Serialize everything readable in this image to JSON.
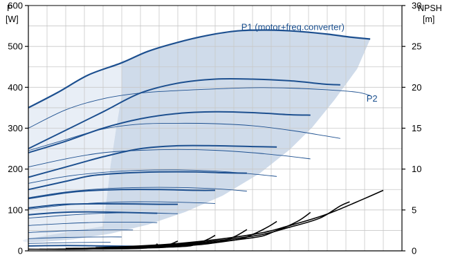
{
  "chart_data": {
    "type": "line",
    "left_axis": {
      "title_line1": "P",
      "title_line2": "[W]",
      "ylim": [
        0,
        600
      ],
      "ticks": [
        0,
        100,
        200,
        300,
        400,
        500,
        600
      ]
    },
    "right_axis": {
      "title_line1": "NPSH",
      "title_line2": "[m]",
      "ylim": [
        0,
        30
      ],
      "ticks": [
        0,
        5,
        10,
        15,
        20,
        25,
        30
      ]
    },
    "grid": true,
    "labels": [
      {
        "text": "P1 (motor+freq.converter)",
        "x": 0.57,
        "y": 540
      },
      {
        "text": "P2",
        "x": 0.905,
        "y": 365
      }
    ],
    "xlim": [
      0,
      1
    ],
    "colors": {
      "p1": "#1c4f8f",
      "p2": "#1c4f8f",
      "band": "#cfdbea",
      "band_light": "#e8eef6",
      "npsh": "#000000",
      "grid": "#c8c8c8"
    },
    "band_upper": [
      [
        0.25,
        460
      ],
      [
        0.32,
        488
      ],
      [
        0.4,
        510
      ],
      [
        0.48,
        527
      ],
      [
        0.56,
        538
      ],
      [
        0.64,
        540
      ],
      [
        0.72,
        537
      ],
      [
        0.8,
        530
      ],
      [
        0.86,
        523
      ],
      [
        0.915,
        518
      ]
    ],
    "band_lower": [
      [
        0.915,
        518
      ],
      [
        0.88,
        445
      ],
      [
        0.82,
        370
      ],
      [
        0.76,
        302
      ],
      [
        0.7,
        248
      ],
      [
        0.62,
        190
      ],
      [
        0.52,
        135
      ],
      [
        0.42,
        95
      ],
      [
        0.32,
        64
      ],
      [
        0.22,
        42
      ],
      [
        0.12,
        28
      ],
      [
        0.04,
        22
      ],
      [
        0,
        20
      ]
    ],
    "band_left": [
      [
        0,
        20
      ],
      [
        0,
        30
      ],
      [
        0.2,
        60
      ],
      [
        0.21,
        130
      ],
      [
        0.22,
        210
      ],
      [
        0.235,
        300
      ],
      [
        0.25,
        380
      ],
      [
        0.25,
        460
      ]
    ],
    "p1_series": [
      {
        "name": "",
        "points": [
          [
            0,
            350
          ],
          [
            0.08,
            388
          ],
          [
            0.16,
            430
          ],
          [
            0.25,
            460
          ],
          [
            0.32,
            488
          ],
          [
            0.4,
            510
          ],
          [
            0.48,
            527
          ],
          [
            0.56,
            538
          ],
          [
            0.64,
            540
          ],
          [
            0.72,
            537
          ],
          [
            0.8,
            530
          ],
          [
            0.86,
            523
          ],
          [
            0.915,
            518
          ]
        ]
      },
      {
        "name": "",
        "points": [
          [
            0,
            250
          ],
          [
            0.1,
            295
          ],
          [
            0.2,
            340
          ],
          [
            0.3,
            386
          ],
          [
            0.4,
            410
          ],
          [
            0.5,
            420
          ],
          [
            0.6,
            420
          ],
          [
            0.7,
            416
          ],
          [
            0.79,
            408
          ],
          [
            0.835,
            406
          ]
        ]
      },
      {
        "name": "",
        "points": [
          [
            0,
            240
          ],
          [
            0.1,
            268
          ],
          [
            0.2,
            300
          ],
          [
            0.3,
            323
          ],
          [
            0.4,
            336
          ],
          [
            0.5,
            340
          ],
          [
            0.6,
            338
          ],
          [
            0.7,
            333
          ],
          [
            0.755,
            332
          ]
        ]
      },
      {
        "name": "",
        "points": [
          [
            0,
            180
          ],
          [
            0.1,
            205
          ],
          [
            0.2,
            230
          ],
          [
            0.3,
            250
          ],
          [
            0.4,
            257
          ],
          [
            0.5,
            257
          ],
          [
            0.6,
            255
          ],
          [
            0.665,
            254
          ]
        ]
      },
      {
        "name": "",
        "points": [
          [
            0,
            150
          ],
          [
            0.1,
            170
          ],
          [
            0.17,
            184
          ],
          [
            0.25,
            190
          ],
          [
            0.35,
            193
          ],
          [
            0.45,
            193
          ],
          [
            0.52,
            191
          ],
          [
            0.585,
            190
          ]
        ]
      },
      {
        "name": "",
        "points": [
          [
            0,
            128
          ],
          [
            0.1,
            142
          ],
          [
            0.16,
            147
          ],
          [
            0.25,
            150
          ],
          [
            0.35,
            150
          ],
          [
            0.45,
            148
          ],
          [
            0.5,
            148
          ]
        ]
      },
      {
        "name": "",
        "points": [
          [
            0,
            105
          ],
          [
            0.08,
            113
          ],
          [
            0.15,
            115
          ],
          [
            0.25,
            115
          ],
          [
            0.35,
            114
          ],
          [
            0.4,
            114
          ]
        ]
      },
      {
        "name": "",
        "points": [
          [
            0,
            88
          ],
          [
            0.05,
            92
          ],
          [
            0.12,
            95
          ],
          [
            0.2,
            95
          ],
          [
            0.3,
            93
          ],
          [
            0.345,
            92
          ]
        ]
      },
      {
        "name": "",
        "points": [
          [
            0,
            12
          ],
          [
            0.1,
            13
          ],
          [
            0.2,
            12
          ],
          [
            0.3,
            11
          ],
          [
            0.39,
            10
          ]
        ]
      }
    ],
    "p2_series": [
      {
        "name": "",
        "points": [
          [
            0,
            300
          ],
          [
            0.1,
            345
          ],
          [
            0.2,
            372
          ],
          [
            0.3,
            386
          ],
          [
            0.4,
            392
          ],
          [
            0.5,
            396
          ],
          [
            0.6,
            399
          ],
          [
            0.7,
            398
          ],
          [
            0.8,
            394
          ],
          [
            0.88,
            388
          ],
          [
            0.915,
            380
          ]
        ]
      },
      {
        "name": "",
        "points": [
          [
            0,
            245
          ],
          [
            0.1,
            272
          ],
          [
            0.2,
            298
          ],
          [
            0.3,
            310
          ],
          [
            0.4,
            312
          ],
          [
            0.5,
            311
          ],
          [
            0.6,
            306
          ],
          [
            0.7,
            295
          ],
          [
            0.79,
            282
          ],
          [
            0.835,
            275
          ]
        ]
      },
      {
        "name": "",
        "points": [
          [
            0,
            205
          ],
          [
            0.1,
            225
          ],
          [
            0.2,
            240
          ],
          [
            0.3,
            246
          ],
          [
            0.4,
            248
          ],
          [
            0.5,
            246
          ],
          [
            0.6,
            240
          ],
          [
            0.68,
            233
          ],
          [
            0.755,
            225
          ]
        ]
      },
      {
        "name": "",
        "points": [
          [
            0,
            165
          ],
          [
            0.1,
            182
          ],
          [
            0.2,
            192
          ],
          [
            0.3,
            197
          ],
          [
            0.4,
            198
          ],
          [
            0.5,
            195
          ],
          [
            0.6,
            188
          ],
          [
            0.665,
            182
          ]
        ]
      },
      {
        "name": "",
        "points": [
          [
            0,
            130
          ],
          [
            0.1,
            144
          ],
          [
            0.2,
            152
          ],
          [
            0.3,
            155
          ],
          [
            0.4,
            155
          ],
          [
            0.5,
            152
          ],
          [
            0.585,
            146
          ]
        ]
      },
      {
        "name": "",
        "points": [
          [
            0,
            102
          ],
          [
            0.1,
            112
          ],
          [
            0.2,
            118
          ],
          [
            0.3,
            120
          ],
          [
            0.4,
            119
          ],
          [
            0.5,
            116
          ]
        ]
      },
      {
        "name": "",
        "points": [
          [
            0,
            80
          ],
          [
            0.1,
            87
          ],
          [
            0.2,
            92
          ],
          [
            0.3,
            93
          ],
          [
            0.4,
            91
          ]
        ]
      },
      {
        "name": "",
        "points": [
          [
            0,
            62
          ],
          [
            0.1,
            67
          ],
          [
            0.2,
            70
          ],
          [
            0.3,
            70
          ],
          [
            0.345,
            69
          ]
        ]
      },
      {
        "name": "",
        "points": [
          [
            0,
            45
          ],
          [
            0.1,
            49
          ],
          [
            0.2,
            51
          ],
          [
            0.28,
            51
          ]
        ]
      },
      {
        "name": "",
        "points": [
          [
            0,
            30
          ],
          [
            0.1,
            33
          ],
          [
            0.2,
            34
          ],
          [
            0.25,
            34
          ]
        ]
      },
      {
        "name": "",
        "points": [
          [
            0,
            18
          ],
          [
            0.1,
            20
          ],
          [
            0.2,
            21
          ],
          [
            0.22,
            21
          ]
        ]
      }
    ],
    "npsh_series": [
      {
        "name": "",
        "points": [
          [
            0.2,
            0.4
          ],
          [
            0.4,
            0.9
          ],
          [
            0.6,
            2.0
          ],
          [
            0.7,
            3.1
          ],
          [
            0.8,
            4.5
          ],
          [
            0.9,
            6.4
          ],
          [
            0.95,
            7.4
          ]
        ]
      },
      {
        "name": "",
        "points": [
          [
            0.18,
            0.4
          ],
          [
            0.4,
            0.8
          ],
          [
            0.6,
            1.8
          ],
          [
            0.7,
            2.9
          ],
          [
            0.78,
            4.0
          ],
          [
            0.835,
            5.5
          ],
          [
            0.86,
            6.0
          ]
        ]
      },
      {
        "name": "",
        "points": [
          [
            0.16,
            0.3
          ],
          [
            0.4,
            0.7
          ],
          [
            0.6,
            1.6
          ],
          [
            0.66,
            2.4
          ],
          [
            0.72,
            3.6
          ],
          [
            0.755,
            4.7
          ]
        ]
      },
      {
        "name": "",
        "points": [
          [
            0.15,
            0.3
          ],
          [
            0.4,
            0.6
          ],
          [
            0.55,
            1.3
          ],
          [
            0.6,
            2.0
          ],
          [
            0.64,
            2.9
          ],
          [
            0.665,
            3.6
          ]
        ]
      },
      {
        "name": "",
        "points": [
          [
            0.14,
            0.3
          ],
          [
            0.4,
            0.6
          ],
          [
            0.5,
            1.0
          ],
          [
            0.55,
            1.7
          ],
          [
            0.585,
            2.6
          ]
        ]
      },
      {
        "name": "",
        "points": [
          [
            0.12,
            0.3
          ],
          [
            0.4,
            0.5
          ],
          [
            0.45,
            0.9
          ],
          [
            0.48,
            1.4
          ],
          [
            0.5,
            1.9
          ]
        ]
      },
      {
        "name": "",
        "points": [
          [
            0.1,
            0.3
          ],
          [
            0.35,
            0.4
          ],
          [
            0.38,
            0.8
          ],
          [
            0.4,
            1.2
          ]
        ]
      },
      {
        "name": "",
        "points": [
          [
            0.08,
            0.2
          ],
          [
            0.3,
            0.3
          ],
          [
            0.34,
            0.7
          ],
          [
            0.345,
            0.9
          ]
        ]
      },
      {
        "name": "",
        "points": [
          [
            0.05,
            0.2
          ],
          [
            0.2,
            0.3
          ],
          [
            0.28,
            0.5
          ]
        ]
      },
      {
        "name": "",
        "points": [
          [
            0.03,
            0.2
          ],
          [
            0.15,
            0.2
          ],
          [
            0.25,
            0.4
          ]
        ]
      },
      {
        "name": "",
        "points": [
          [
            0,
            0.2
          ],
          [
            0.1,
            0.2
          ],
          [
            0.22,
            0.3
          ]
        ]
      }
    ]
  }
}
